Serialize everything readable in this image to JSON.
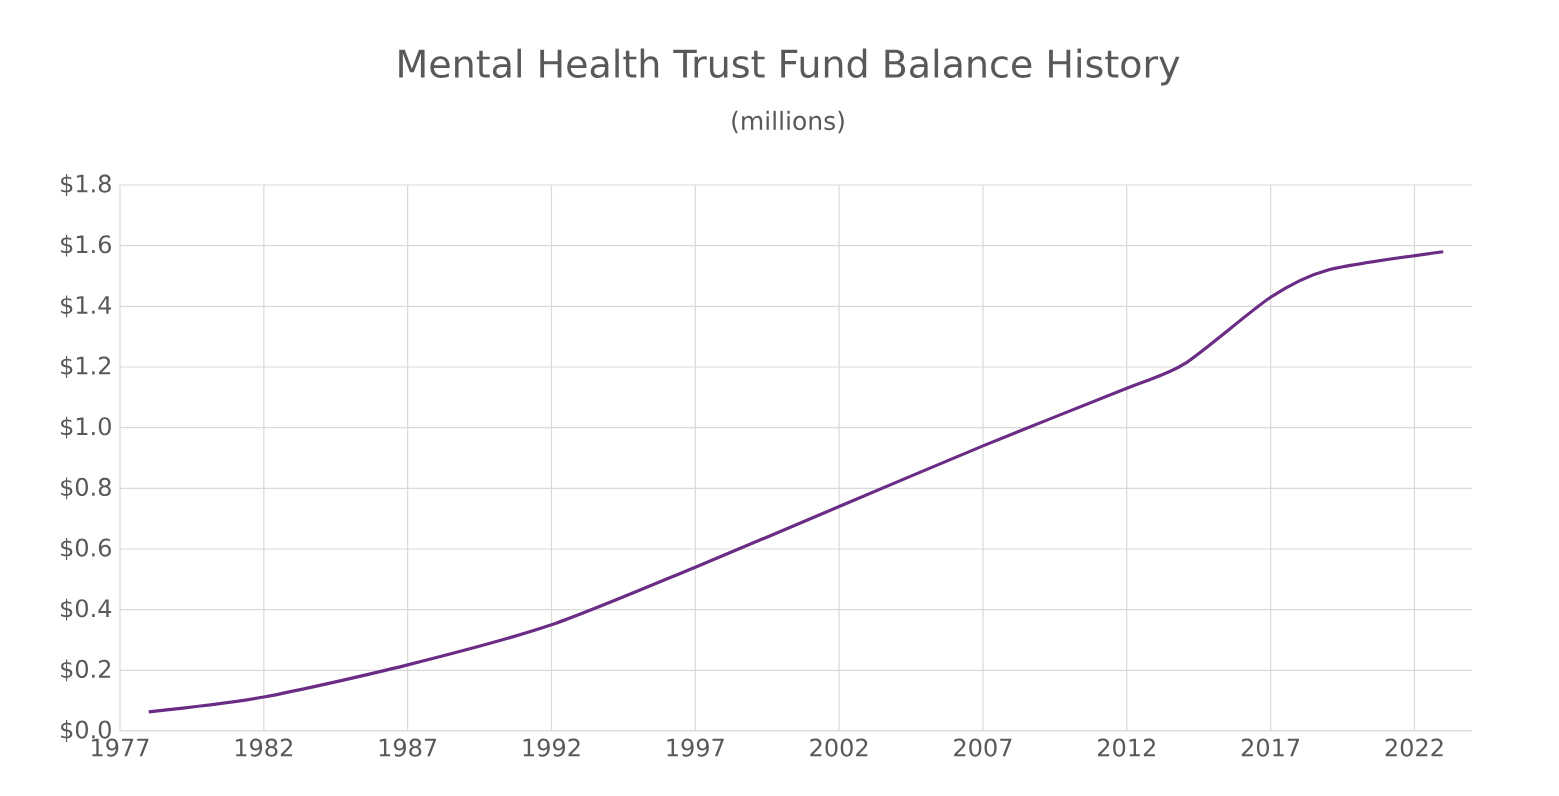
{
  "chart_data": {
    "type": "line",
    "title": "Mental Health Trust Fund Balance History",
    "subtitle": "(millions)",
    "x": [
      1978,
      1982,
      1987,
      1992,
      1997,
      2002,
      2007,
      2012,
      2014,
      2017,
      2019,
      2023
    ],
    "series": [
      {
        "color": "#6a2c85",
        "values": [
          0.063,
          0.112,
          0.218,
          0.35,
          0.54,
          0.74,
          0.94,
          1.13,
          1.21,
          1.43,
          1.52,
          1.58
        ]
      }
    ],
    "xlim": [
      1977,
      2024
    ],
    "xticks": [
      1977,
      1982,
      1987,
      1992,
      1997,
      2002,
      2007,
      2012,
      2017,
      2022
    ],
    "ylim": [
      0,
      1.8
    ],
    "yticks": [
      {
        "value": 0,
        "label": "$0.0"
      },
      {
        "value": 0.2,
        "label": "$0.2"
      },
      {
        "value": 0.4,
        "label": "$0.4"
      },
      {
        "value": 0.6,
        "label": "$0.6"
      },
      {
        "value": 0.8,
        "label": "$0.8"
      },
      {
        "value": 1.0,
        "label": "$1.0"
      },
      {
        "value": 1.2,
        "label": "$1.2"
      },
      {
        "value": 1.4,
        "label": "$1.4"
      },
      {
        "value": 1.6,
        "label": "$1.6"
      },
      {
        "value": 1.8,
        "label": "$1.8"
      }
    ],
    "grid": true,
    "line_style": "solid"
  }
}
